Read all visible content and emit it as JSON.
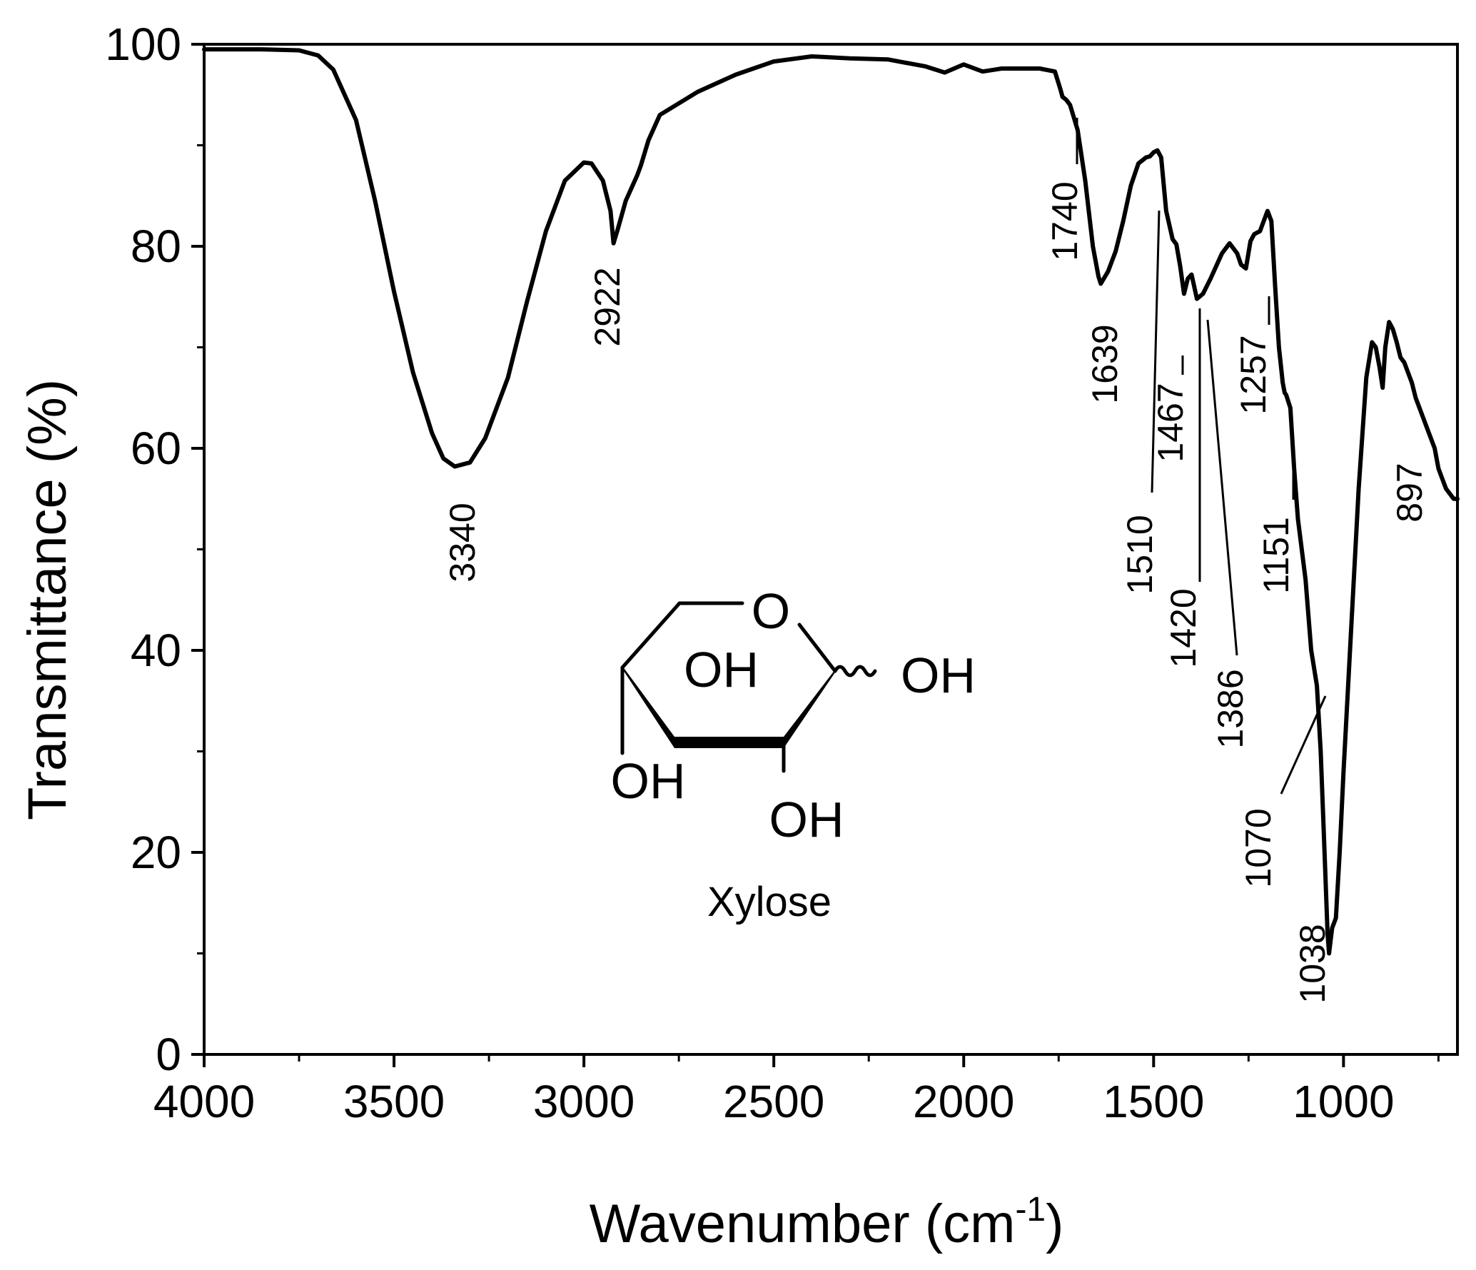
{
  "chart_data": {
    "type": "line",
    "title": "",
    "xlabel": "Wavenumber (cm",
    "xlabel_superscript": "-1",
    "xlabel_suffix": ")",
    "ylabel": "Transmittance (%)",
    "xlim": [
      4000,
      700
    ],
    "ylim": [
      0,
      100
    ],
    "x_reversed": true,
    "grid": false,
    "legend": "none",
    "line_color": "#000000",
    "x_ticks": [
      4000,
      3500,
      3000,
      2500,
      2000,
      1500,
      1000
    ],
    "x_tick_labels": [
      "4000",
      "3500",
      "3000",
      "2500",
      "2000",
      "1500",
      "1000"
    ],
    "y_ticks": [
      0,
      20,
      40,
      60,
      80,
      100
    ],
    "y_tick_labels": [
      "0",
      "20",
      "40",
      "60",
      "80",
      "100"
    ],
    "series": [
      {
        "x": [
          4000,
          3850,
          3750,
          3700,
          3660,
          3600,
          3550,
          3500,
          3450,
          3400,
          3370,
          3340,
          3300,
          3260,
          3200,
          3150,
          3100,
          3050,
          3000,
          2980,
          2950,
          2930,
          2922,
          2910,
          2890,
          2860,
          2850,
          2830,
          2800,
          2700,
          2600,
          2500,
          2400,
          2300,
          2200,
          2100,
          2050,
          2000,
          1950,
          1900,
          1850,
          1800,
          1760,
          1745,
          1740,
          1730,
          1720,
          1700,
          1680,
          1660,
          1645,
          1639,
          1620,
          1600,
          1580,
          1560,
          1540,
          1520,
          1510,
          1500,
          1490,
          1480,
          1467,
          1450,
          1440,
          1430,
          1420,
          1410,
          1400,
          1386,
          1370,
          1350,
          1320,
          1300,
          1280,
          1270,
          1257,
          1245,
          1235,
          1220,
          1200,
          1190,
          1180,
          1170,
          1160,
          1155,
          1151,
          1140,
          1130,
          1120,
          1100,
          1085,
          1070,
          1060,
          1050,
          1042,
          1038,
          1030,
          1020,
          1010,
          1000,
          980,
          960,
          940,
          925,
          915,
          905,
          897,
          890,
          880,
          870,
          860,
          850,
          840,
          830,
          820,
          810,
          800,
          790,
          780,
          770,
          760,
          750,
          740,
          730,
          720,
          710,
          700
        ],
        "y": [
          99.5,
          99.5,
          99.4,
          98.9,
          97.5,
          92.5,
          84.5,
          75.5,
          67.5,
          61.5,
          59,
          58.2,
          58.6,
          61,
          67,
          74.5,
          81.5,
          86.5,
          88.3,
          88.2,
          86.5,
          83.5,
          80.3,
          81.8,
          84.5,
          87,
          88,
          90.5,
          93,
          95.3,
          97,
          98.3,
          98.8,
          98.6,
          98.5,
          97.8,
          97.2,
          98,
          97.3,
          97.6,
          97.6,
          97.6,
          97.3,
          95.5,
          94.8,
          94.5,
          94,
          91.5,
          86.5,
          80,
          77,
          76.3,
          77.5,
          79.5,
          82.5,
          86,
          88.2,
          88.8,
          88.9,
          89.3,
          89.5,
          88.8,
          83.5,
          80.7,
          80.2,
          78,
          75.3,
          76.8,
          77.2,
          74.8,
          75.3,
          76.8,
          79.3,
          80.3,
          79.3,
          78.2,
          77.8,
          80.5,
          81.2,
          81.5,
          83.5,
          82.5,
          76,
          70,
          66.5,
          65.5,
          65.3,
          64,
          58,
          53,
          47,
          40,
          36.5,
          30,
          20,
          12,
          10,
          12.5,
          13.5,
          20,
          28,
          42,
          56,
          67,
          70.5,
          70,
          68,
          66,
          70,
          72.5,
          71.8,
          70.5,
          69,
          68.5,
          67.5,
          66.5,
          65,
          64,
          63,
          62,
          61,
          60,
          58,
          57,
          56,
          55.5,
          55,
          55
        ]
      }
    ],
    "annotations": [
      {
        "text": "3340"
      },
      {
        "text": "2922"
      },
      {
        "text": "1740"
      },
      {
        "text": "1639"
      },
      {
        "text": "1510"
      },
      {
        "text": "1467"
      },
      {
        "text": "1420"
      },
      {
        "text": "1386"
      },
      {
        "text": "1257"
      },
      {
        "text": "1151"
      },
      {
        "text": "1070"
      },
      {
        "text": "1038"
      },
      {
        "text": "897"
      }
    ]
  },
  "structure": {
    "ring_oxygen": "O",
    "oh_label": "OH",
    "name": "Xylose"
  }
}
